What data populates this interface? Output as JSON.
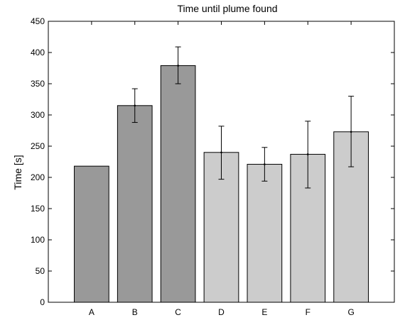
{
  "chart_data": {
    "type": "bar",
    "title": "Time until plume found",
    "xlabel": "",
    "ylabel": "Time [s]",
    "ylim": [
      0,
      450
    ],
    "yticks": [
      0,
      50,
      100,
      150,
      200,
      250,
      300,
      350,
      400,
      450
    ],
    "categories": [
      "A",
      "B",
      "C",
      "D",
      "E",
      "F",
      "G"
    ],
    "values": [
      218,
      315,
      379,
      240,
      221,
      237,
      273
    ],
    "error_low": [
      null,
      288,
      350,
      197,
      194,
      183,
      217
    ],
    "error_high": [
      null,
      342,
      409,
      282,
      248,
      290,
      330
    ],
    "bar_colors": [
      "#999999",
      "#999999",
      "#999999",
      "#cccccc",
      "#cccccc",
      "#cccccc",
      "#cccccc"
    ],
    "grid": false,
    "legend": "none"
  }
}
